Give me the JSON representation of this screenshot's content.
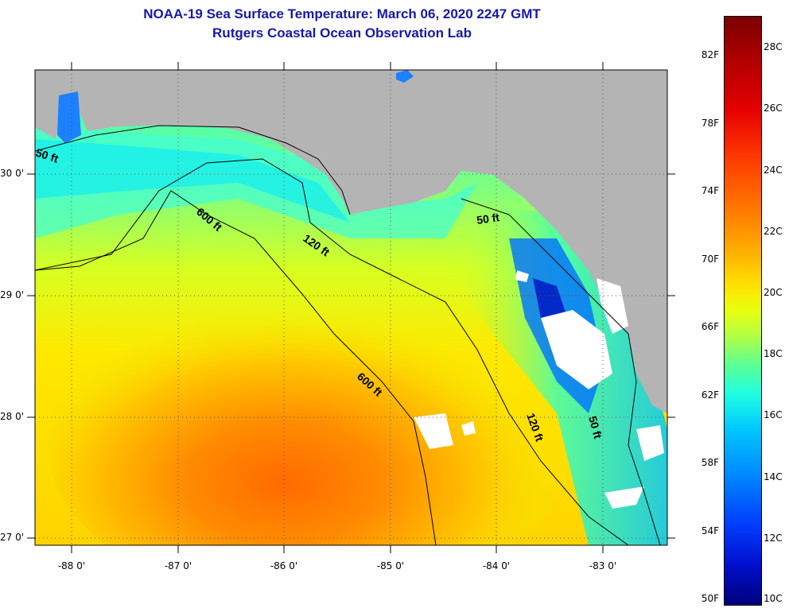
{
  "title": "NOAA-19 Sea Surface Temperature:  March 06, 2020 2247 GMT",
  "subtitle": "Rutgers Coastal Ocean Observation Lab",
  "axes": {
    "y_ticks": [
      "30 0'",
      "29 0'",
      "28 0'",
      "27 0'"
    ],
    "x_ticks": [
      "-88 0'",
      "-87 0'",
      "-86 0'",
      "-85 0'",
      "-84 0'",
      "-83 0'"
    ]
  },
  "contours": {
    "c50_west": "50 ft",
    "c600_north": "600 ft",
    "c120_north": "120 ft",
    "c50_east": "50 ft",
    "c600_south": "600 ft",
    "c120_south": "120 ft",
    "c50_south": "50 ft"
  },
  "colorbar": {
    "fahrenheit": [
      "82F",
      "78F",
      "74F",
      "70F",
      "66F",
      "62F",
      "58F",
      "54F",
      "50F"
    ],
    "celsius": [
      "28C",
      "26C",
      "24C",
      "22C",
      "20C",
      "18C",
      "16C",
      "14C",
      "12C",
      "10C"
    ]
  },
  "colors": {
    "land": "#b4b4b4",
    "title": "#1818a8",
    "cloud": "#ffffff"
  }
}
